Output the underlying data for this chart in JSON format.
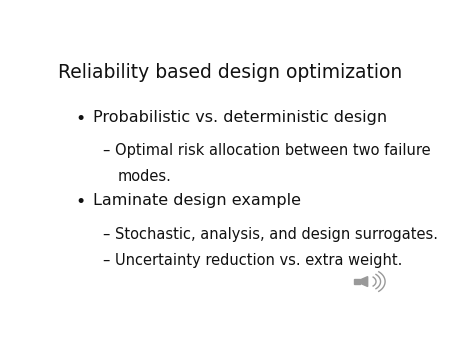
{
  "title": "Reliability based design optimization",
  "background_color": "#ffffff",
  "title_color": "#111111",
  "title_fontsize": 13.5,
  "bullet1": "Probabilistic vs. deterministic design",
  "sub1a_line1": "– Optimal risk allocation between two failure",
  "sub1a_line2": "   modes.",
  "bullet2": "Laminate design example",
  "sub2a": "– Stochastic, analysis, and design surrogates.",
  "sub2b": "– Uncertainty reduction vs. extra weight.",
  "bullet_color": "#111111",
  "text_color": "#111111",
  "bullet_fontsize": 11.5,
  "sub_fontsize": 10.5,
  "font_family": "DejaVu Sans"
}
